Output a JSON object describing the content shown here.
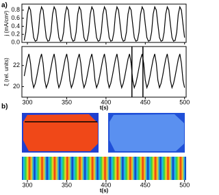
{
  "panels": [
    "a)",
    "b)"
  ],
  "chart_data": [
    {
      "type": "line",
      "ylabel": "j (mA/cm²)",
      "xlim": [
        293,
        502
      ],
      "xticks": [
        300,
        350,
        400,
        450,
        500
      ],
      "ylim": [
        0,
        0.95
      ],
      "yticks": [
        {
          "value": 0,
          "label": "0.0"
        },
        0.2,
        0.4,
        0.6,
        0.8
      ],
      "color": "#000000",
      "x": [
        296,
        298,
        300,
        302,
        304,
        306,
        308,
        310,
        312,
        314,
        316,
        318,
        320,
        322,
        324,
        326,
        328,
        330,
        332,
        334,
        336,
        338,
        340,
        342,
        344,
        346,
        348,
        350,
        352,
        354,
        356,
        358,
        360,
        362,
        364,
        366,
        368,
        370,
        372,
        374,
        376,
        378,
        380,
        382,
        384,
        386,
        388,
        390,
        392,
        394,
        396,
        398,
        400,
        402,
        404,
        406,
        408,
        410,
        412,
        414,
        416,
        418,
        420,
        422,
        424,
        426,
        428,
        430,
        432,
        434,
        436,
        438,
        440,
        442,
        444,
        446,
        448,
        450,
        452,
        454,
        456,
        458,
        460,
        462,
        464,
        466,
        468,
        470,
        472,
        474,
        476,
        478,
        480,
        482,
        484,
        486,
        488,
        490,
        492,
        494,
        496,
        498,
        500
      ],
      "values": [
        0.05,
        0.25,
        0.7,
        0.88,
        0.8,
        0.45,
        0.12,
        0.03,
        0.05,
        0.25,
        0.7,
        0.88,
        0.8,
        0.45,
        0.12,
        0.03,
        0.05,
        0.25,
        0.7,
        0.88,
        0.8,
        0.45,
        0.12,
        0.03,
        0.05,
        0.25,
        0.7,
        0.88,
        0.8,
        0.45,
        0.12,
        0.03,
        0.05,
        0.25,
        0.7,
        0.88,
        0.8,
        0.45,
        0.12,
        0.03,
        0.05,
        0.25,
        0.7,
        0.88,
        0.8,
        0.45,
        0.12,
        0.03,
        0.05,
        0.25,
        0.7,
        0.88,
        0.8,
        0.45,
        0.12,
        0.03,
        0.05,
        0.25,
        0.7,
        0.88,
        0.8,
        0.45,
        0.12,
        0.03,
        0.05,
        0.25,
        0.7,
        0.88,
        0.8,
        0.45,
        0.12,
        0.03,
        0.05,
        0.25,
        0.7,
        0.88,
        0.8,
        0.45,
        0.12,
        0.03,
        0.05,
        0.25,
        0.7,
        0.88,
        0.8,
        0.45,
        0.12,
        0.03,
        0.05,
        0.25,
        0.7,
        0.88,
        0.8,
        0.45,
        0.12,
        0.03,
        0.05,
        0.25,
        0.7,
        0.88,
        0.8,
        0.45,
        0.12
      ]
    },
    {
      "type": "line",
      "ylabel": "ξ (rel. units)",
      "xlabel": "t(s)",
      "xlim": [
        293,
        502
      ],
      "xticks": [
        300,
        350,
        400,
        450,
        500
      ],
      "ylim": [
        19,
        23.8
      ],
      "yticks": [
        20,
        22
      ],
      "color": "#000000",
      "vlines": [
        433,
        447
      ],
      "x": [
        296,
        298,
        300,
        302,
        304,
        306,
        308,
        310,
        312,
        314,
        316,
        318,
        320,
        322,
        324,
        326,
        328,
        330,
        332,
        334,
        336,
        338,
        340,
        342,
        344,
        346,
        348,
        350,
        352,
        354,
        356,
        358,
        360,
        362,
        364,
        366,
        368,
        370,
        372,
        374,
        376,
        378,
        380,
        382,
        384,
        386,
        388,
        390,
        392,
        394,
        396,
        398,
        400,
        402,
        404,
        406,
        408,
        410,
        412,
        414,
        416,
        418,
        420,
        422,
        424,
        426,
        428,
        430,
        432,
        434,
        436,
        438,
        440,
        442,
        444,
        446,
        448,
        450,
        452,
        454,
        456,
        458,
        460,
        462,
        464,
        466,
        468,
        470,
        472,
        474,
        476,
        478,
        480,
        482,
        484,
        486,
        488,
        490,
        492,
        494,
        496,
        498,
        500
      ],
      "values": [
        21.0,
        21.8,
        22.6,
        23.1,
        22.2,
        20.6,
        19.9,
        20.3,
        21.0,
        21.8,
        22.6,
        23.1,
        22.2,
        20.6,
        19.9,
        20.3,
        21.0,
        21.8,
        22.6,
        23.1,
        22.2,
        20.6,
        19.9,
        20.3,
        21.0,
        21.8,
        22.6,
        23.1,
        22.2,
        20.6,
        19.9,
        20.3,
        21.0,
        21.8,
        22.6,
        23.1,
        22.2,
        20.6,
        19.9,
        20.3,
        21.0,
        21.8,
        22.6,
        23.1,
        22.2,
        20.6,
        19.9,
        20.3,
        21.0,
        21.8,
        22.6,
        23.1,
        22.2,
        20.6,
        19.9,
        20.3,
        21.0,
        21.8,
        22.6,
        23.1,
        22.2,
        20.6,
        19.9,
        20.3,
        21.0,
        21.8,
        22.6,
        23.1,
        22.2,
        20.6,
        19.9,
        20.3,
        21.0,
        21.8,
        22.6,
        23.1,
        22.2,
        20.6,
        19.9,
        20.3,
        21.0,
        21.8,
        22.6,
        23.1,
        22.2,
        20.6,
        19.9,
        20.3,
        21.0,
        21.8,
        22.6,
        23.1,
        22.2,
        20.6,
        19.9,
        20.3,
        21.0,
        21.8,
        22.6,
        23.1,
        22.2,
        20.6,
        19.9
      ]
    },
    {
      "type": "image",
      "xlabel": "t(s)",
      "xlim": [
        293,
        502
      ],
      "xticks": [
        300,
        350,
        400,
        450,
        500
      ]
    }
  ]
}
